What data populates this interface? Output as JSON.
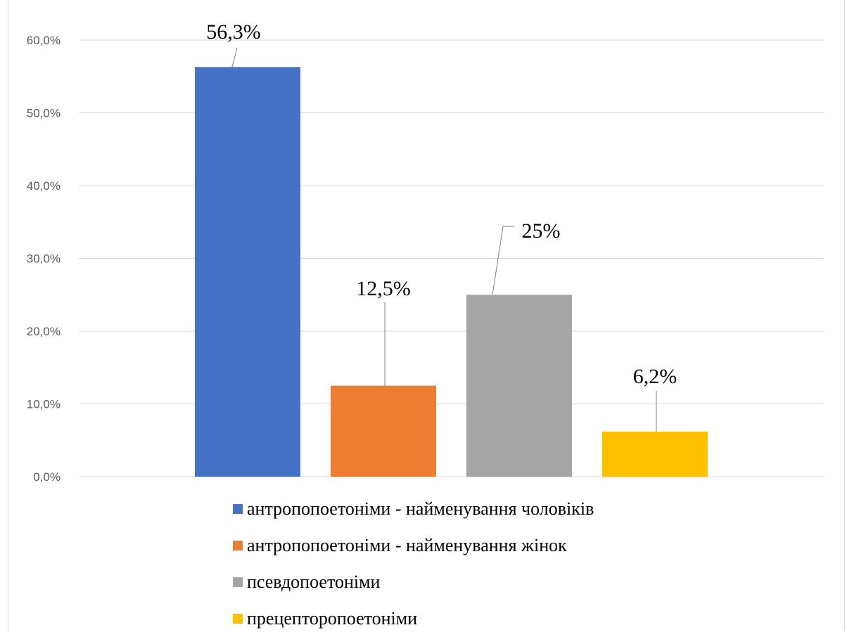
{
  "chart_data": {
    "type": "bar",
    "categories": [
      "антропопоетоніми - найменування чоловіків",
      "антропопоетоніми - найменування жінок",
      "псевдопоетоніми",
      "прецепторопоетоніми"
    ],
    "values": [
      56.3,
      12.5,
      25,
      6.2
    ],
    "data_labels": [
      "56,3%",
      "12,5%",
      "25%",
      "6,2%"
    ],
    "colors": [
      "#4472C4",
      "#ED7D31",
      "#A5A5A5",
      "#FFC000"
    ],
    "ylim": [
      0,
      60
    ],
    "yticks": [
      "0,0%",
      "10,0%",
      "20,0%",
      "30,0%",
      "40,0%",
      "50,0%",
      "60,0%"
    ],
    "grid": true,
    "legend_position": "bottom"
  }
}
